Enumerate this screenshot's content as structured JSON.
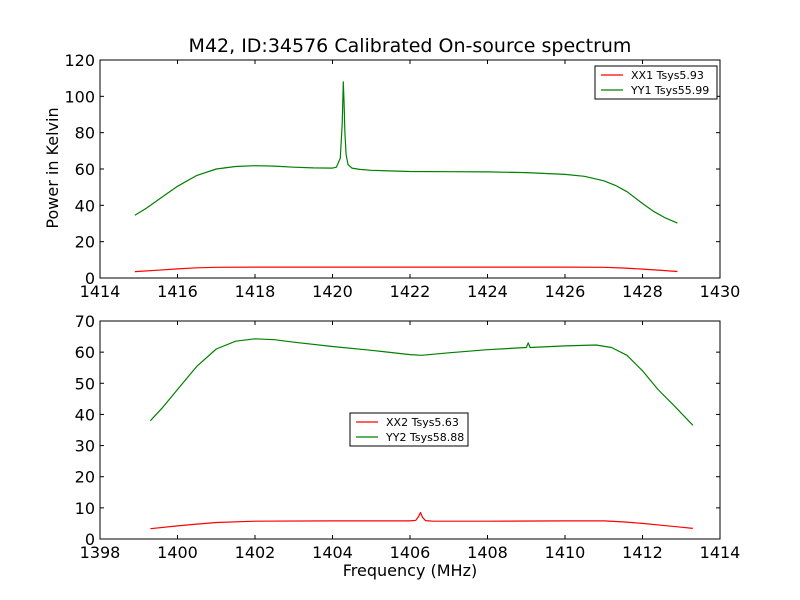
{
  "figure": {
    "title": "M42, ID:34576 Calibrated On-source spectrum",
    "ylabel": "Power in Kelvin",
    "xlabel": "Frequency (MHz)"
  },
  "colors": {
    "xx": "#ff0000",
    "yy": "#008000"
  },
  "chart_data": [
    {
      "type": "line",
      "title": "M42, ID:34576 Calibrated On-source spectrum",
      "xlabel": "",
      "ylabel": "Power in Kelvin",
      "xlim": [
        1414,
        1430
      ],
      "ylim": [
        0,
        120
      ],
      "xticks": [
        "1414",
        "1416",
        "1418",
        "1420",
        "1422",
        "1424",
        "1426",
        "1428",
        "1430"
      ],
      "yticks": [
        "0",
        "20",
        "40",
        "60",
        "80",
        "100",
        "120"
      ],
      "legend_position": "top-right",
      "grid": false,
      "series": [
        {
          "name": "XX1 Tsys5.93",
          "color": "#ff0000",
          "x": [
            1414.9,
            1415.5,
            1416.0,
            1416.5,
            1417.0,
            1418.0,
            1420.0,
            1422.0,
            1424.0,
            1426.0,
            1427.0,
            1427.5,
            1428.0,
            1428.5,
            1428.9
          ],
          "y": [
            3.5,
            4.3,
            5.0,
            5.6,
            5.9,
            6.0,
            6.0,
            6.0,
            6.0,
            6.0,
            5.9,
            5.5,
            4.9,
            4.2,
            3.6
          ]
        },
        {
          "name": "YY1 Tsys55.99",
          "color": "#008000",
          "x": [
            1414.9,
            1415.2,
            1415.5,
            1416.0,
            1416.5,
            1417.0,
            1417.5,
            1418.0,
            1418.5,
            1419.0,
            1419.5,
            1420.0,
            1420.1,
            1420.2,
            1420.25,
            1420.28,
            1420.3,
            1420.32,
            1420.35,
            1420.4,
            1420.5,
            1420.7,
            1421.0,
            1422.0,
            1423.0,
            1424.0,
            1425.0,
            1426.0,
            1426.5,
            1427.0,
            1427.3,
            1427.6,
            1428.0,
            1428.3,
            1428.6,
            1428.9
          ],
          "y": [
            34.5,
            38.5,
            43.0,
            50.5,
            56.5,
            60.0,
            61.4,
            61.8,
            61.6,
            61.0,
            60.6,
            60.5,
            61.0,
            66.0,
            85.0,
            108.0,
            96.0,
            80.0,
            68.0,
            62.5,
            60.5,
            59.8,
            59.3,
            58.6,
            58.5,
            58.4,
            58.0,
            57.0,
            56.0,
            53.5,
            51.0,
            47.5,
            41.0,
            36.5,
            33.0,
            30.2
          ]
        }
      ]
    },
    {
      "type": "line",
      "title": "",
      "xlabel": "Frequency (MHz)",
      "ylabel": "",
      "xlim": [
        1398,
        1414
      ],
      "ylim": [
        0,
        70
      ],
      "xticks": [
        "1398",
        "1400",
        "1402",
        "1404",
        "1406",
        "1408",
        "1410",
        "1412",
        "1414"
      ],
      "yticks": [
        "0",
        "10",
        "20",
        "30",
        "40",
        "50",
        "60",
        "70"
      ],
      "legend_position": "center",
      "grid": false,
      "series": [
        {
          "name": "XX2 Tsys5.63",
          "color": "#ff0000",
          "x": [
            1399.3,
            1400.0,
            1400.5,
            1401.0,
            1402.0,
            1404.0,
            1405.5,
            1406.0,
            1406.15,
            1406.22,
            1406.27,
            1406.32,
            1406.4,
            1406.6,
            1407.0,
            1408.0,
            1410.0,
            1411.0,
            1411.5,
            1412.0,
            1412.5,
            1413.0,
            1413.3
          ],
          "y": [
            3.3,
            4.2,
            4.8,
            5.3,
            5.7,
            5.8,
            5.8,
            5.8,
            6.0,
            7.2,
            8.5,
            7.0,
            5.9,
            5.7,
            5.7,
            5.7,
            5.8,
            5.8,
            5.5,
            5.0,
            4.4,
            3.8,
            3.4
          ]
        },
        {
          "name": "YY2 Tsys58.88",
          "color": "#008000",
          "x": [
            1399.3,
            1399.6,
            1400.0,
            1400.5,
            1401.0,
            1401.5,
            1402.0,
            1402.5,
            1403.0,
            1404.0,
            1405.0,
            1406.0,
            1406.3,
            1407.0,
            1408.0,
            1409.0,
            1409.05,
            1409.1,
            1410.0,
            1410.8,
            1411.2,
            1411.6,
            1412.0,
            1412.4,
            1412.8,
            1413.3
          ],
          "y": [
            38.0,
            42.0,
            48.0,
            55.5,
            61.0,
            63.5,
            64.3,
            64.0,
            63.2,
            61.8,
            60.6,
            59.2,
            59.0,
            59.8,
            60.8,
            61.5,
            63.0,
            61.5,
            62.0,
            62.3,
            61.5,
            59.0,
            54.0,
            48.0,
            43.0,
            36.5
          ]
        }
      ]
    }
  ]
}
